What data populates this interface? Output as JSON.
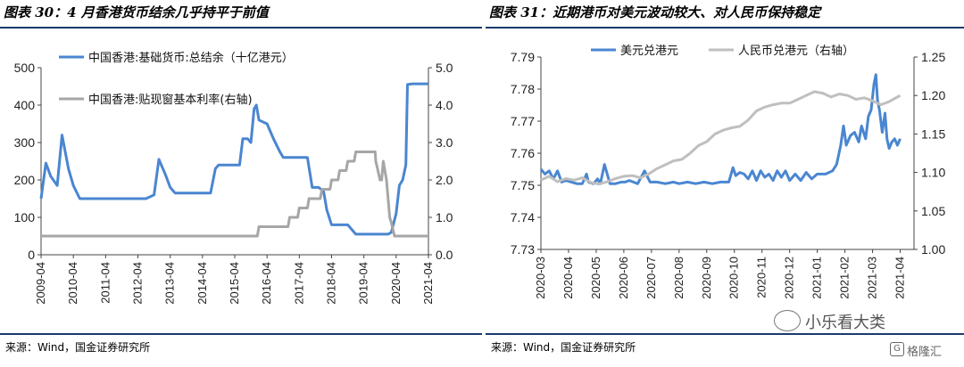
{
  "chart_data": [
    {
      "type": "line",
      "title": "图表 30：4 月香港货币结余几乎持平于前值",
      "source": "来源：Wind，国金证券研究所",
      "y_left": {
        "min": 0,
        "max": 500,
        "ticks": [
          "0",
          "100",
          "200",
          "300",
          "400",
          "500"
        ]
      },
      "y_right": {
        "min": 0,
        "max": 5,
        "ticks": [
          "0.0",
          "1.0",
          "2.0",
          "3.0",
          "4.0",
          "5.0"
        ]
      },
      "x": {
        "min": 2009.25,
        "max": 2021.25,
        "ticks": [
          2009.25,
          2010.25,
          2011.25,
          2012.25,
          2013.25,
          2014.25,
          2015.25,
          2016.25,
          2017.25,
          2018.25,
          2019.25,
          2020.25,
          2021.25
        ],
        "tick_labels": [
          "2009-04",
          "2010-04",
          "2011-04",
          "2012-04",
          "2013-04",
          "2014-04",
          "2015-04",
          "2016-04",
          "2017-04",
          "2018-04",
          "2019-04",
          "2020-04",
          "2021-04"
        ]
      },
      "legend_placement": "top-left",
      "grid": false,
      "series": [
        {
          "name": "中国香港:基础货币:总结余（十亿港元）",
          "axis": "left",
          "color": "#4a86d0",
          "points": [
            [
              2009.25,
              150
            ],
            [
              2009.4,
              245
            ],
            [
              2009.55,
              210
            ],
            [
              2009.75,
              185
            ],
            [
              2009.9,
              320
            ],
            [
              2010.1,
              230
            ],
            [
              2010.25,
              185
            ],
            [
              2010.45,
              150
            ],
            [
              2011.0,
              150
            ],
            [
              2011.5,
              150
            ],
            [
              2012.0,
              150
            ],
            [
              2012.5,
              150
            ],
            [
              2012.75,
              160
            ],
            [
              2012.9,
              255
            ],
            [
              2013.1,
              215
            ],
            [
              2013.25,
              180
            ],
            [
              2013.4,
              165
            ],
            [
              2014.0,
              165
            ],
            [
              2014.5,
              165
            ],
            [
              2014.65,
              230
            ],
            [
              2014.75,
              240
            ],
            [
              2015.25,
              240
            ],
            [
              2015.4,
              240
            ],
            [
              2015.5,
              310
            ],
            [
              2015.65,
              310
            ],
            [
              2015.75,
              300
            ],
            [
              2015.85,
              390
            ],
            [
              2015.92,
              400
            ],
            [
              2016.0,
              360
            ],
            [
              2016.25,
              350
            ],
            [
              2016.45,
              310
            ],
            [
              2016.65,
              275
            ],
            [
              2016.75,
              260
            ],
            [
              2017.0,
              260
            ],
            [
              2017.25,
              260
            ],
            [
              2017.5,
              260
            ],
            [
              2017.65,
              180
            ],
            [
              2017.85,
              180
            ],
            [
              2018.0,
              170
            ],
            [
              2018.1,
              120
            ],
            [
              2018.25,
              80
            ],
            [
              2018.5,
              80
            ],
            [
              2018.75,
              80
            ],
            [
              2019.0,
              55
            ],
            [
              2019.25,
              55
            ],
            [
              2019.5,
              55
            ],
            [
              2019.75,
              55
            ],
            [
              2020.0,
              55
            ],
            [
              2020.1,
              60
            ],
            [
              2020.25,
              110
            ],
            [
              2020.35,
              185
            ],
            [
              2020.45,
              200
            ],
            [
              2020.55,
              240
            ],
            [
              2020.6,
              455
            ],
            [
              2020.75,
              457
            ],
            [
              2021.0,
              457
            ],
            [
              2021.25,
              457
            ]
          ]
        },
        {
          "name": "中国香港:贴现窗基本利率(右轴)",
          "axis": "right",
          "color": "#a6a6a6",
          "points": [
            [
              2009.25,
              0.5
            ],
            [
              2010.0,
              0.5
            ],
            [
              2011.0,
              0.5
            ],
            [
              2012.0,
              0.5
            ],
            [
              2013.0,
              0.5
            ],
            [
              2014.0,
              0.5
            ],
            [
              2015.0,
              0.5
            ],
            [
              2015.95,
              0.5
            ],
            [
              2016.0,
              0.75
            ],
            [
              2016.9,
              0.75
            ],
            [
              2016.95,
              1.0
            ],
            [
              2017.2,
              1.0
            ],
            [
              2017.25,
              1.25
            ],
            [
              2017.5,
              1.25
            ],
            [
              2017.55,
              1.5
            ],
            [
              2017.9,
              1.5
            ],
            [
              2017.95,
              1.75
            ],
            [
              2018.2,
              1.75
            ],
            [
              2018.25,
              2.0
            ],
            [
              2018.45,
              2.0
            ],
            [
              2018.5,
              2.25
            ],
            [
              2018.7,
              2.25
            ],
            [
              2018.75,
              2.5
            ],
            [
              2018.95,
              2.5
            ],
            [
              2019.0,
              2.75
            ],
            [
              2019.5,
              2.75
            ],
            [
              2019.6,
              2.75
            ],
            [
              2019.62,
              2.5
            ],
            [
              2019.75,
              2.0
            ],
            [
              2019.8,
              2.0
            ],
            [
              2019.85,
              2.5
            ],
            [
              2019.95,
              2.0
            ],
            [
              2020.0,
              1.5
            ],
            [
              2020.05,
              1.0
            ],
            [
              2020.1,
              0.86
            ],
            [
              2020.2,
              0.5
            ],
            [
              2021.25,
              0.5
            ]
          ]
        }
      ]
    },
    {
      "type": "line",
      "title": "图表 31：近期港币对美元波动较大、对人民币保持稳定",
      "source": "来源：Wind，国金证券研究所",
      "y_left": {
        "min": 7.73,
        "max": 7.79,
        "ticks": [
          "7.73",
          "7.74",
          "7.75",
          "7.76",
          "7.77",
          "7.78",
          "7.79"
        ]
      },
      "y_right": {
        "min": 1.0,
        "max": 1.25,
        "ticks": [
          "1.00",
          "1.05",
          "1.10",
          "1.15",
          "1.20",
          "1.25"
        ]
      },
      "x": {
        "min": 0,
        "max": 13.5,
        "ticks": [
          0,
          1,
          2,
          3,
          4,
          5,
          6,
          7,
          8,
          9,
          10,
          11,
          12,
          13
        ],
        "tick_labels": [
          "2020-03",
          "2020-04",
          "2020-05",
          "2020-06",
          "2020-07",
          "2020-08",
          "2020-09",
          "2020-10",
          "2020-11",
          "2020-12",
          "2021-01",
          "2021-02",
          "2021-03",
          "2021-04"
        ]
      },
      "legend_placement": "top-left",
      "grid": false,
      "series": [
        {
          "name": "美元兑港元",
          "axis": "left",
          "color": "#4a86d0",
          "points": [
            [
              0.0,
              7.755
            ],
            [
              0.15,
              7.7535
            ],
            [
              0.3,
              7.7545
            ],
            [
              0.45,
              7.752
            ],
            [
              0.6,
              7.7545
            ],
            [
              0.75,
              7.751
            ],
            [
              0.9,
              7.7515
            ],
            [
              1.1,
              7.751
            ],
            [
              1.3,
              7.7505
            ],
            [
              1.5,
              7.7505
            ],
            [
              1.65,
              7.7535
            ],
            [
              1.72,
              7.751
            ],
            [
              1.9,
              7.7505
            ],
            [
              2.05,
              7.752
            ],
            [
              2.15,
              7.7505
            ],
            [
              2.3,
              7.7565
            ],
            [
              2.4,
              7.7535
            ],
            [
              2.5,
              7.7505
            ],
            [
              2.7,
              7.7505
            ],
            [
              2.9,
              7.751
            ],
            [
              3.05,
              7.751
            ],
            [
              3.2,
              7.7515
            ],
            [
              3.5,
              7.7505
            ],
            [
              3.75,
              7.7545
            ],
            [
              3.95,
              7.751
            ],
            [
              4.2,
              7.751
            ],
            [
              4.5,
              7.7505
            ],
            [
              4.8,
              7.751
            ],
            [
              5.0,
              7.7505
            ],
            [
              5.3,
              7.751
            ],
            [
              5.6,
              7.7505
            ],
            [
              5.9,
              7.751
            ],
            [
              6.2,
              7.7505
            ],
            [
              6.5,
              7.751
            ],
            [
              6.8,
              7.751
            ],
            [
              6.95,
              7.7555
            ],
            [
              7.05,
              7.753
            ],
            [
              7.2,
              7.754
            ],
            [
              7.35,
              7.7535
            ],
            [
              7.5,
              7.752
            ],
            [
              7.65,
              7.7545
            ],
            [
              7.8,
              7.7515
            ],
            [
              7.95,
              7.7545
            ],
            [
              8.1,
              7.7525
            ],
            [
              8.25,
              7.7535
            ],
            [
              8.4,
              7.7515
            ],
            [
              8.55,
              7.7545
            ],
            [
              8.7,
              7.7525
            ],
            [
              8.85,
              7.7545
            ],
            [
              9.0,
              7.7515
            ],
            [
              9.2,
              7.7535
            ],
            [
              9.4,
              7.7515
            ],
            [
              9.6,
              7.754
            ],
            [
              9.8,
              7.752
            ],
            [
              10.0,
              7.7535
            ],
            [
              10.3,
              7.7535
            ],
            [
              10.55,
              7.7545
            ],
            [
              10.7,
              7.7565
            ],
            [
              10.85,
              7.7625
            ],
            [
              10.95,
              7.7685
            ],
            [
              11.05,
              7.7625
            ],
            [
              11.2,
              7.7655
            ],
            [
              11.35,
              7.7665
            ],
            [
              11.5,
              7.7635
            ],
            [
              11.6,
              7.7685
            ],
            [
              11.75,
              7.7645
            ],
            [
              11.85,
              7.7715
            ],
            [
              11.95,
              7.7735
            ],
            [
              12.05,
              7.7815
            ],
            [
              12.12,
              7.7845
            ],
            [
              12.18,
              7.7765
            ],
            [
              12.25,
              7.7735
            ],
            [
              12.35,
              7.7665
            ],
            [
              12.45,
              7.7725
            ],
            [
              12.52,
              7.7645
            ],
            [
              12.6,
              7.7615
            ],
            [
              12.7,
              7.7635
            ],
            [
              12.8,
              7.7645
            ],
            [
              12.9,
              7.7625
            ],
            [
              13.0,
              7.7645
            ]
          ]
        },
        {
          "name": "人民币兑港元（右轴）",
          "axis": "right",
          "color": "#bfbfbf",
          "points": [
            [
              0.0,
              1.09
            ],
            [
              0.3,
              1.095
            ],
            [
              0.6,
              1.088
            ],
            [
              0.9,
              1.092
            ],
            [
              1.2,
              1.09
            ],
            [
              1.5,
              1.093
            ],
            [
              1.8,
              1.087
            ],
            [
              2.1,
              1.085
            ],
            [
              2.4,
              1.088
            ],
            [
              2.7,
              1.092
            ],
            [
              3.0,
              1.095
            ],
            [
              3.3,
              1.096
            ],
            [
              3.6,
              1.093
            ],
            [
              3.9,
              1.098
            ],
            [
              4.2,
              1.105
            ],
            [
              4.5,
              1.11
            ],
            [
              4.8,
              1.115
            ],
            [
              5.1,
              1.117
            ],
            [
              5.4,
              1.125
            ],
            [
              5.7,
              1.135
            ],
            [
              6.0,
              1.14
            ],
            [
              6.3,
              1.15
            ],
            [
              6.6,
              1.155
            ],
            [
              6.9,
              1.158
            ],
            [
              7.2,
              1.16
            ],
            [
              7.5,
              1.168
            ],
            [
              7.8,
              1.18
            ],
            [
              8.1,
              1.185
            ],
            [
              8.4,
              1.188
            ],
            [
              8.7,
              1.19
            ],
            [
              9.0,
              1.19
            ],
            [
              9.3,
              1.195
            ],
            [
              9.6,
              1.2
            ],
            [
              9.9,
              1.205
            ],
            [
              10.2,
              1.203
            ],
            [
              10.5,
              1.198
            ],
            [
              10.8,
              1.202
            ],
            [
              11.1,
              1.2
            ],
            [
              11.4,
              1.195
            ],
            [
              11.7,
              1.197
            ],
            [
              12.0,
              1.193
            ],
            [
              12.3,
              1.188
            ],
            [
              12.6,
              1.192
            ],
            [
              12.9,
              1.198
            ],
            [
              13.0,
              1.2
            ]
          ]
        }
      ]
    }
  ],
  "watermark": {
    "text": "小乐看大类",
    "sub": "格隆汇",
    "g": "G"
  }
}
